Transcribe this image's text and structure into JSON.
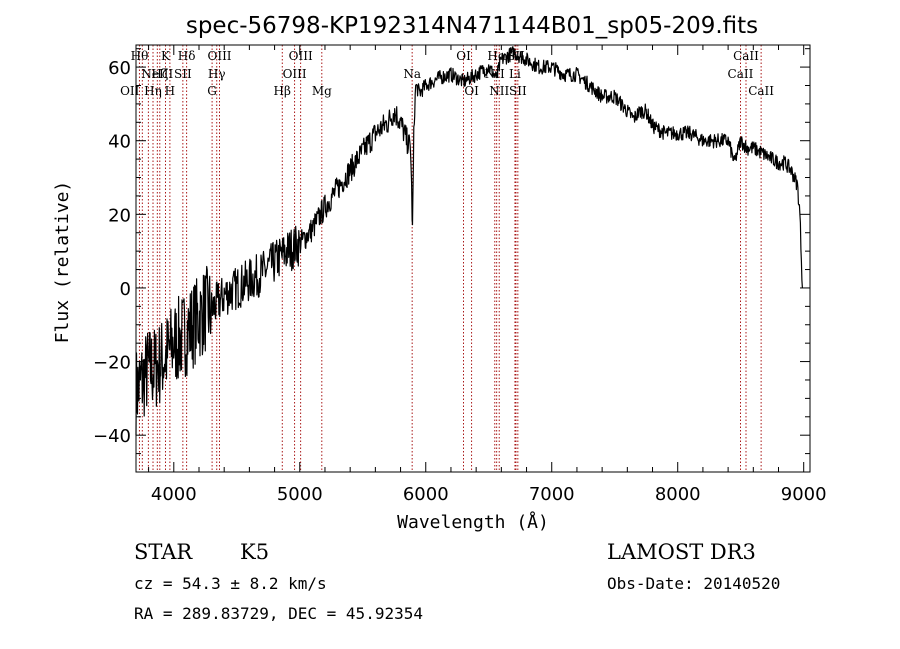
{
  "chart_data": {
    "type": "line",
    "title": "spec-56798-KP192314N471144B01_sp05-209.fits",
    "xlabel": "Wavelength (Å)",
    "ylabel": "Flux (relative)",
    "xlim": [
      3700,
      9050
    ],
    "ylim": [
      -50,
      66
    ],
    "x_ticks": [
      4000,
      5000,
      6000,
      7000,
      8000,
      9000
    ],
    "y_ticks": [
      -40,
      -20,
      0,
      20,
      40,
      60
    ],
    "x_tick_labels": [
      "4000",
      "5000",
      "6000",
      "7000",
      "8000",
      "9000"
    ],
    "y_tick_labels": [
      "−40",
      "−20",
      "0",
      "20",
      "40",
      "60"
    ],
    "series": [
      {
        "name": "flux",
        "x": [
          3700,
          3750,
          3800,
          3850,
          3900,
          3950,
          4000,
          4050,
          4100,
          4150,
          4200,
          4250,
          4300,
          4350,
          4400,
          4500,
          4600,
          4700,
          4800,
          4900,
          5000,
          5100,
          5200,
          5300,
          5400,
          5500,
          5600,
          5700,
          5750,
          5800,
          5850,
          5880,
          5895,
          5905,
          5920,
          5950,
          6000,
          6100,
          6200,
          6300,
          6400,
          6500,
          6560,
          6600,
          6700,
          6800,
          6900,
          7000,
          7100,
          7200,
          7300,
          7400,
          7500,
          7600,
          7650,
          7700,
          7750,
          7800,
          7900,
          8000,
          8100,
          8200,
          8300,
          8400,
          8450,
          8500,
          8550,
          8600,
          8700,
          8800,
          8850,
          8900,
          8950,
          8970,
          8990
        ],
        "y": [
          -28,
          -25,
          -22,
          -22,
          -20,
          -18,
          -15,
          -14,
          -12,
          -10,
          -8,
          -6,
          -6,
          -4,
          -2,
          0,
          2,
          4,
          7,
          10,
          12,
          16,
          22,
          27,
          32,
          37,
          42,
          45,
          48,
          45,
          40,
          38,
          15,
          42,
          55,
          53,
          55,
          57,
          58,
          56,
          58,
          60,
          57,
          62,
          64,
          62,
          60,
          60,
          58,
          58,
          55,
          52,
          52,
          48,
          46,
          48,
          48,
          44,
          42,
          42,
          42,
          40,
          40,
          40,
          34,
          40,
          38,
          38,
          36,
          34,
          34,
          32,
          28,
          20,
          0
        ]
      }
    ],
    "lines": [
      {
        "x": 3727,
        "label": "OII",
        "row": 2,
        "align": "end"
      },
      {
        "x": 3750,
        "label": "",
        "row": 0,
        "align": "middle"
      },
      {
        "x": 3798,
        "label": "Hθ",
        "row": 0,
        "align": "end"
      },
      {
        "x": 3835,
        "label": "Hη",
        "row": 2,
        "align": "middle"
      },
      {
        "x": 3869,
        "label": "NeIII",
        "row": 1,
        "align": "middle"
      },
      {
        "x": 3889,
        "label": "Hζ",
        "row": 1,
        "align": "middle"
      },
      {
        "x": 3934,
        "label": "K",
        "row": 0,
        "align": "middle"
      },
      {
        "x": 3969,
        "label": "H",
        "row": 2,
        "align": "middle"
      },
      {
        "x": 4072,
        "label": "SII",
        "row": 1,
        "align": "middle"
      },
      {
        "x": 4102,
        "label": "Hδ",
        "row": 0,
        "align": "middle"
      },
      {
        "x": 4304,
        "label": "G",
        "row": 2,
        "align": "middle"
      },
      {
        "x": 4341,
        "label": "Hγ",
        "row": 1,
        "align": "middle"
      },
      {
        "x": 4363,
        "label": "OIII",
        "row": 0,
        "align": "middle"
      },
      {
        "x": 4861,
        "label": "Hβ",
        "row": 2,
        "align": "middle"
      },
      {
        "x": 4959,
        "label": "OIII",
        "row": 1,
        "align": "middle"
      },
      {
        "x": 5007,
        "label": "OIII",
        "row": 0,
        "align": "middle"
      },
      {
        "x": 5175,
        "label": "Mg",
        "row": 2,
        "align": "middle"
      },
      {
        "x": 5892,
        "label": "Na",
        "row": 1,
        "align": "middle"
      },
      {
        "x": 6300,
        "label": "OI",
        "row": 0,
        "align": "middle"
      },
      {
        "x": 6364,
        "label": "OI",
        "row": 2,
        "align": "middle"
      },
      {
        "x": 6548,
        "label": "NII",
        "row": 1,
        "align": "middle"
      },
      {
        "x": 6563,
        "label": "Hα",
        "row": 0,
        "align": "middle"
      },
      {
        "x": 6583,
        "label": "NII",
        "row": 2,
        "align": "middle"
      },
      {
        "x": 6716,
        "label": "SII",
        "row": 0,
        "align": "middle"
      },
      {
        "x": 6731,
        "label": "SII",
        "row": 2,
        "align": "middle"
      },
      {
        "x": 6708,
        "label": "Li",
        "row": 1,
        "align": "middle"
      },
      {
        "x": 8498,
        "label": "CaII",
        "row": 1,
        "align": "middle"
      },
      {
        "x": 8542,
        "label": "CaII",
        "row": 0,
        "align": "middle"
      },
      {
        "x": 8662,
        "label": "CaII",
        "row": 2,
        "align": "middle"
      }
    ]
  },
  "info": {
    "class": "STAR",
    "subclass": "K5",
    "survey": "LAMOST DR3",
    "cz": "cz = 54.3 ± 8.2 km/s",
    "obs_date": "Obs-Date: 20140520",
    "coords": "RA = 289.83729, DEC =  45.92354"
  }
}
